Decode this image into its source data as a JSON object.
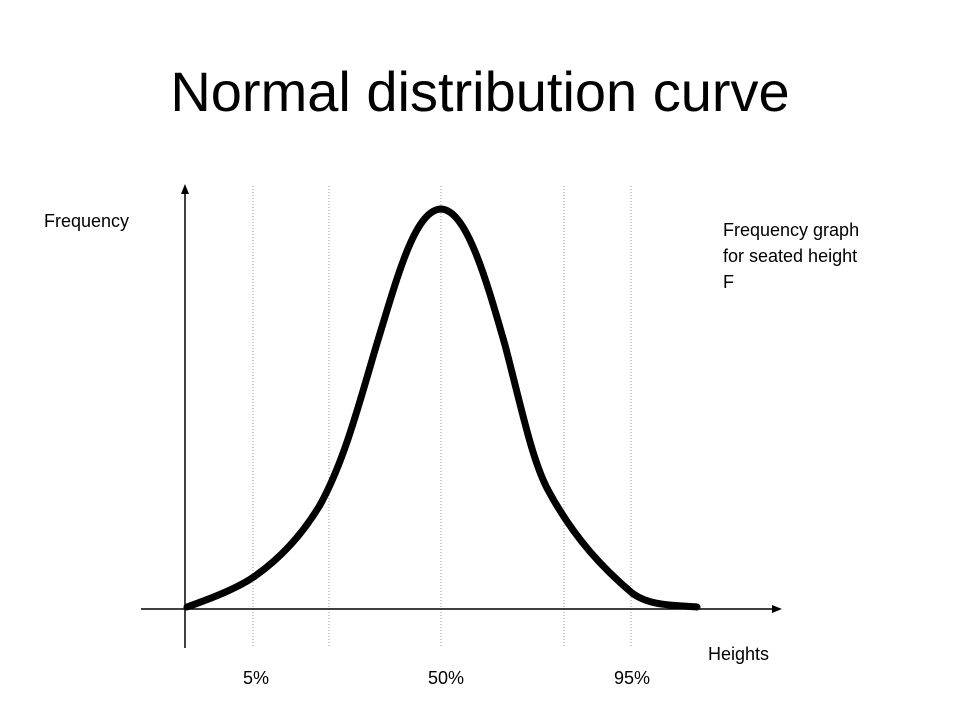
{
  "title": "Normal distribution curve",
  "axes": {
    "y_label": "Frequency",
    "x_label": "Heights"
  },
  "annotation": {
    "lines": [
      "Frequency graph",
      "for seated height",
      "F"
    ]
  },
  "percentiles": [
    {
      "label": "5%"
    },
    {
      "label": "50%"
    },
    {
      "label": "95%"
    }
  ],
  "colors": {
    "curve": "#000000",
    "guides": "#9a9a9a",
    "axes": "#000000"
  }
}
